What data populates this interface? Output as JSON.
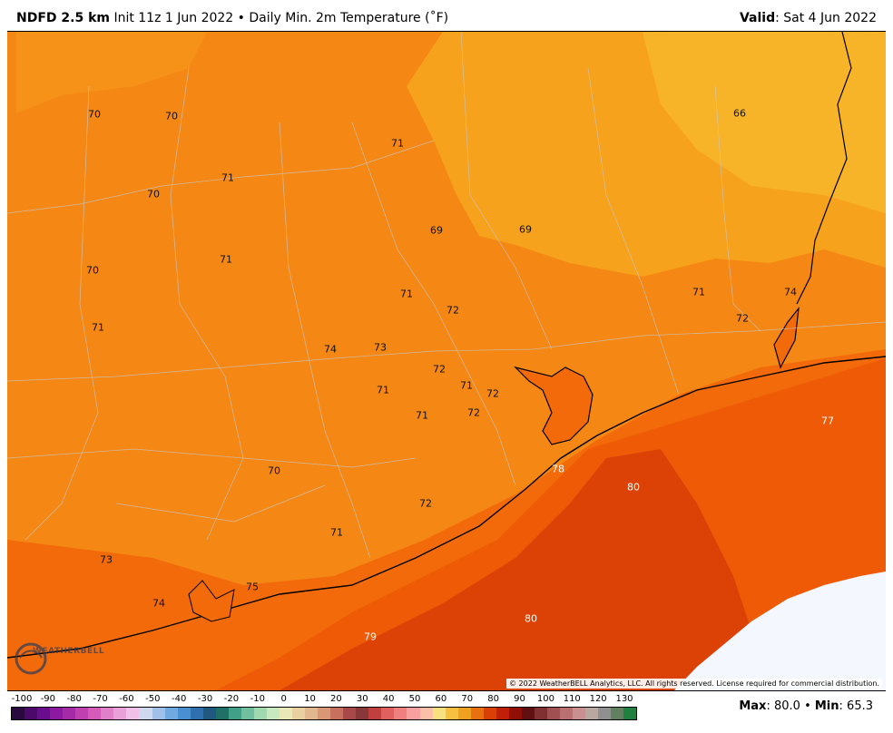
{
  "header": {
    "model": "NDFD 2.5 km",
    "init": "Init 11z 1 Jun 2022",
    "bullet": "•",
    "product": "Daily Min. 2m Temperature (˚F)",
    "valid_label": "Valid",
    "valid_date": ": Sat 4 Jun 2022"
  },
  "map": {
    "labels": [
      {
        "text": "70",
        "tone": "dark"
      },
      {
        "text": "70",
        "tone": "dark"
      },
      {
        "text": "71",
        "tone": "dark"
      },
      {
        "text": "70",
        "tone": "dark"
      },
      {
        "text": "71",
        "tone": "dark"
      },
      {
        "text": "70",
        "tone": "dark"
      },
      {
        "text": "71",
        "tone": "dark"
      },
      {
        "text": "71",
        "tone": "dark"
      },
      {
        "text": "69",
        "tone": "dark"
      },
      {
        "text": "69",
        "tone": "dark"
      },
      {
        "text": "66",
        "tone": "dark"
      },
      {
        "text": "71",
        "tone": "dark"
      },
      {
        "text": "72",
        "tone": "dark"
      },
      {
        "text": "71",
        "tone": "dark"
      },
      {
        "text": "72",
        "tone": "dark"
      },
      {
        "text": "74",
        "tone": "dark"
      },
      {
        "text": "74",
        "tone": "dark"
      },
      {
        "text": "73",
        "tone": "dark"
      },
      {
        "text": "72",
        "tone": "dark"
      },
      {
        "text": "71",
        "tone": "dark"
      },
      {
        "text": "72",
        "tone": "dark"
      },
      {
        "text": "71",
        "tone": "dark"
      },
      {
        "text": "72",
        "tone": "dark"
      },
      {
        "text": "71",
        "tone": "dark"
      },
      {
        "text": "77",
        "tone": "light"
      },
      {
        "text": "70",
        "tone": "dark"
      },
      {
        "text": "72",
        "tone": "dark"
      },
      {
        "text": "78",
        "tone": "light"
      },
      {
        "text": "80",
        "tone": "light"
      },
      {
        "text": "71",
        "tone": "dark"
      },
      {
        "text": "73",
        "tone": "dark"
      },
      {
        "text": "75",
        "tone": "dark"
      },
      {
        "text": "74",
        "tone": "dark"
      },
      {
        "text": "80",
        "tone": "light"
      },
      {
        "text": "79",
        "tone": "light"
      }
    ],
    "copyright": "© 2022 WeatherBELL Analytics, LLC. All rights reserved. License required for commercial distribution.",
    "logo_text": "WEATHERBELL",
    "colors": {
      "cool_orange": "#f7a21c",
      "land_orange": "#f58714",
      "warm_orange": "#f36a0a",
      "gulf_deep": "#dc4206",
      "no_data": "#f5f7fe"
    }
  },
  "legend": {
    "ticks": [
      "-100",
      "-90",
      "-80",
      "-70",
      "-60",
      "-50",
      "-40",
      "-30",
      "-20",
      "-10",
      "0",
      "10",
      "20",
      "30",
      "40",
      "50",
      "60",
      "70",
      "80",
      "90",
      "100",
      "110",
      "120",
      "130"
    ],
    "colors": [
      "#2a0a3e",
      "#4b0a6a",
      "#6a0e8e",
      "#8b1aa0",
      "#a52aa8",
      "#c040b0",
      "#d45cb8",
      "#e080c8",
      "#e8a0d8",
      "#f0c0e8",
      "#d0d8f0",
      "#a0c0e8",
      "#70a8e0",
      "#4890d0",
      "#3070b0",
      "#205880",
      "#207068",
      "#40a088",
      "#70c0a0",
      "#a0d8b0",
      "#c8e8c0",
      "#e8e8b8",
      "#e8d0a0",
      "#e0b890",
      "#d89878",
      "#c87060",
      "#a84848",
      "#883838",
      "#c04040",
      "#e06060",
      "#f08080",
      "#f8a0a0",
      "#fcc0a8",
      "#f8e080",
      "#f8c040",
      "#f0a020",
      "#e87010",
      "#d84008",
      "#c02008",
      "#901008",
      "#601010",
      "#803030",
      "#a05050",
      "#b87070",
      "#c89090",
      "#b8a8a0",
      "#909090",
      "#608060",
      "#208040"
    ],
    "max_label": "Max",
    "max_value": ": 80.0",
    "sep": "•",
    "min_label": "Min",
    "min_value": ": 65.3"
  }
}
